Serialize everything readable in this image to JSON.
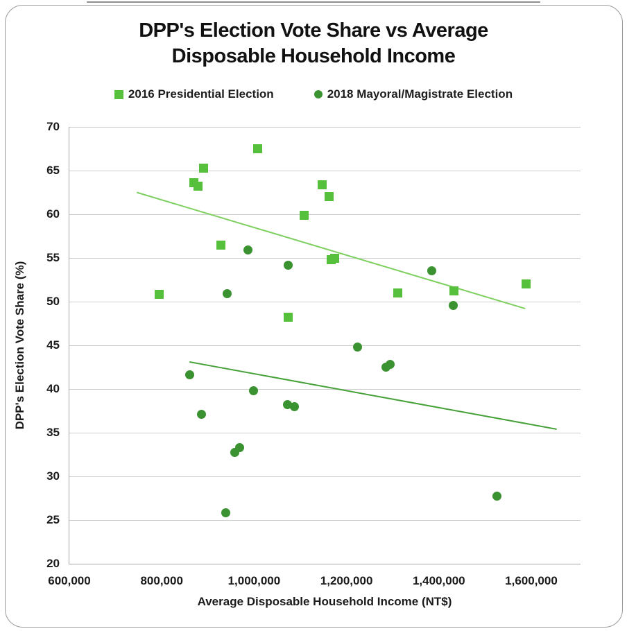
{
  "chart_data": {
    "type": "scatter",
    "title": "DPP's Election Vote Share vs Average Disposable Household Income",
    "title_lines": [
      "DPP's Election Vote Share vs Average",
      "Disposable Household Income"
    ],
    "xlabel": "Average Disposable Household Income (NT$)",
    "ylabel": "DPP's Election Vote Share (%)",
    "xlim": [
      600000,
      1710000
    ],
    "ylim": [
      20,
      70
    ],
    "x_ticks": [
      600000,
      800000,
      1000000,
      1200000,
      1400000,
      1600000
    ],
    "y_ticks": [
      20,
      25,
      30,
      35,
      40,
      45,
      50,
      55,
      60,
      65,
      70
    ],
    "grid": "horizontal-only",
    "legend_position": "top-center",
    "colors": {
      "series_2016": "#56BF3B",
      "series_2018": "#3A9230",
      "trend_2016": "#7DD05F",
      "trend_2018": "#45A137",
      "gridline": "#cdcdcd",
      "axis_line": "#a8a8a8",
      "text": "#1a1a1a"
    },
    "series": [
      {
        "name": "2016 Presidential Election",
        "marker": "square",
        "color": "#56BF3B",
        "points": [
          [
            794000,
            50.8
          ],
          [
            869000,
            63.6
          ],
          [
            878000,
            63.2
          ],
          [
            890000,
            65.3
          ],
          [
            928000,
            56.5
          ],
          [
            1008000,
            67.5
          ],
          [
            1073000,
            48.2
          ],
          [
            1108000,
            59.9
          ],
          [
            1148000,
            63.4
          ],
          [
            1162000,
            62.0
          ],
          [
            1167000,
            54.8
          ],
          [
            1174000,
            55.0
          ],
          [
            1311000,
            51.0
          ],
          [
            1432000,
            51.2
          ],
          [
            1589000,
            52.0
          ]
        ],
        "trendline": {
          "x1": 746000,
          "y1": 62.5,
          "x2": 1587000,
          "y2": 49.2,
          "color": "#7DD05F"
        }
      },
      {
        "name": "2018 Mayoral/Magistrate Election",
        "marker": "circle",
        "color": "#3A9230",
        "points": [
          [
            860000,
            41.6
          ],
          [
            886000,
            37.1
          ],
          [
            939000,
            25.8
          ],
          [
            942000,
            50.9
          ],
          [
            958000,
            32.7
          ],
          [
            968000,
            33.3
          ],
          [
            986000,
            55.9
          ],
          [
            999000,
            39.8
          ],
          [
            1072000,
            38.2
          ],
          [
            1073000,
            54.2
          ],
          [
            1087000,
            38.0
          ],
          [
            1224000,
            44.8
          ],
          [
            1285000,
            42.5
          ],
          [
            1295000,
            42.8
          ],
          [
            1384000,
            53.5
          ],
          [
            1431000,
            49.6
          ],
          [
            1525000,
            27.7
          ]
        ],
        "trendline": {
          "x1": 860000,
          "y1": 43.1,
          "x2": 1655000,
          "y2": 35.4,
          "color": "#45A137"
        }
      }
    ]
  }
}
